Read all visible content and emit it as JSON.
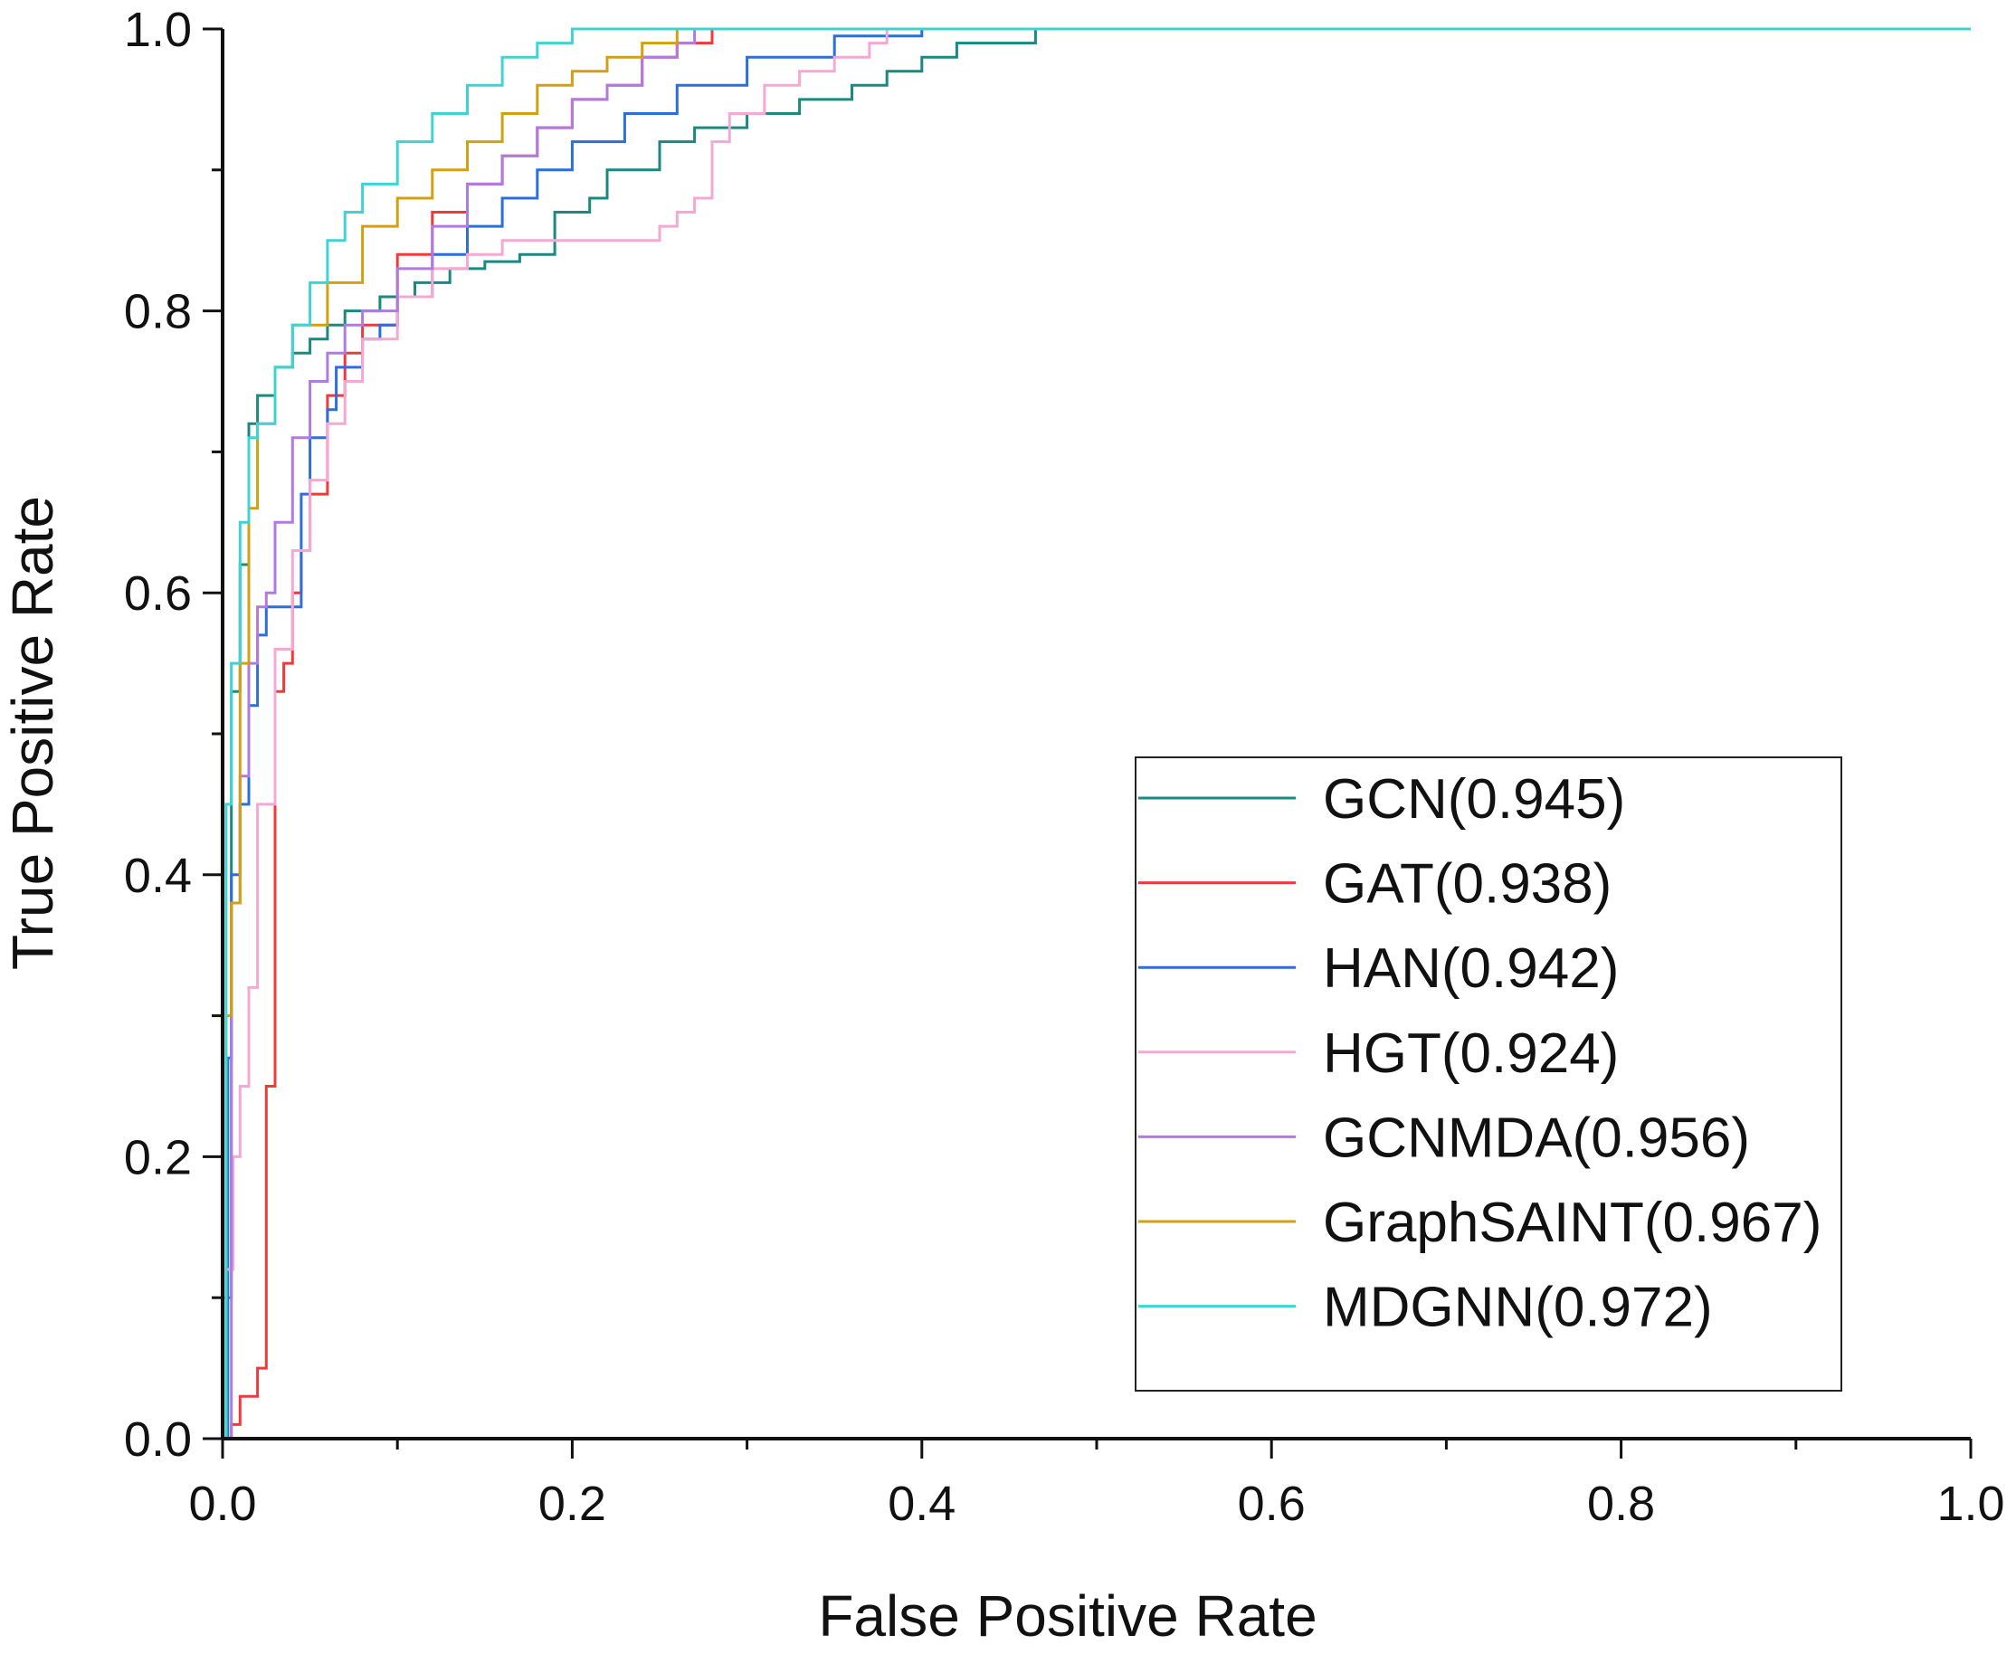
{
  "chart_data": {
    "type": "line",
    "title": "",
    "xlabel": "False Positive Rate",
    "ylabel": "True Positive Rate",
    "xlim": [
      0,
      1
    ],
    "ylim": [
      0,
      1
    ],
    "xticks": [
      "0.0",
      "0.2",
      "0.4",
      "0.6",
      "0.8",
      "1.0"
    ],
    "yticks": [
      "0.0",
      "0.2",
      "0.4",
      "0.6",
      "0.8",
      "1.0"
    ],
    "grid": false,
    "legend_position": "bottom-right",
    "series": [
      {
        "name": "GCN",
        "label": "GCN(0.945)",
        "auc": 0.945,
        "color": "#1a8a80",
        "x": [
          0,
          0,
          0.005,
          0.005,
          0.01,
          0.015,
          0.02,
          0.03,
          0.04,
          0.05,
          0.06,
          0.07,
          0.09,
          0.11,
          0.13,
          0.15,
          0.17,
          0.18,
          0.19,
          0.21,
          0.22,
          0.25,
          0.27,
          0.3,
          0.33,
          0.36,
          0.38,
          0.4,
          0.42,
          0.465,
          0.465,
          0.5,
          1.0
        ],
        "y": [
          0,
          0.1,
          0.2,
          0.53,
          0.62,
          0.72,
          0.74,
          0.76,
          0.77,
          0.78,
          0.79,
          0.8,
          0.81,
          0.82,
          0.83,
          0.835,
          0.84,
          0.84,
          0.87,
          0.88,
          0.9,
          0.92,
          0.93,
          0.94,
          0.95,
          0.96,
          0.97,
          0.98,
          0.99,
          0.99,
          1.0,
          1.0,
          1.0
        ]
      },
      {
        "name": "GAT",
        "label": "GAT(0.938)",
        "auc": 0.938,
        "color": "#f03a3a",
        "x": [
          0,
          0.005,
          0.01,
          0.02,
          0.025,
          0.025,
          0.03,
          0.03,
          0.035,
          0.04,
          0.045,
          0.05,
          0.06,
          0.07,
          0.08,
          0.1,
          0.12,
          0.14,
          0.16,
          0.18,
          0.2,
          0.22,
          0.24,
          0.26,
          0.28,
          0.32,
          1.0
        ],
        "y": [
          0,
          0.01,
          0.03,
          0.05,
          0.17,
          0.25,
          0.52,
          0.53,
          0.55,
          0.6,
          0.63,
          0.67,
          0.74,
          0.77,
          0.79,
          0.84,
          0.87,
          0.89,
          0.91,
          0.93,
          0.95,
          0.96,
          0.98,
          0.99,
          1.0,
          1.0,
          1.0
        ]
      },
      {
        "name": "HAN",
        "label": "HAN(0.942)",
        "auc": 0.942,
        "color": "#2c6fdc",
        "x": [
          0,
          0.003,
          0.005,
          0.01,
          0.015,
          0.02,
          0.025,
          0.03,
          0.045,
          0.05,
          0.06,
          0.065,
          0.08,
          0.09,
          0.1,
          0.12,
          0.14,
          0.16,
          0.18,
          0.2,
          0.23,
          0.26,
          0.3,
          0.35,
          0.4,
          1.0
        ],
        "y": [
          0,
          0.27,
          0.4,
          0.45,
          0.52,
          0.57,
          0.59,
          0.59,
          0.67,
          0.71,
          0.73,
          0.76,
          0.78,
          0.79,
          0.81,
          0.84,
          0.86,
          0.88,
          0.9,
          0.92,
          0.94,
          0.96,
          0.98,
          0.995,
          1.0,
          1.0
        ]
      },
      {
        "name": "HGT",
        "label": "HGT(0.924)",
        "auc": 0.924,
        "color": "#f5a8d4",
        "x": [
          0,
          0.002,
          0.006,
          0.01,
          0.015,
          0.02,
          0.03,
          0.04,
          0.05,
          0.06,
          0.07,
          0.08,
          0.1,
          0.12,
          0.14,
          0.16,
          0.18,
          0.2,
          0.22,
          0.24,
          0.25,
          0.26,
          0.27,
          0.28,
          0.29,
          0.31,
          0.33,
          0.35,
          0.37,
          0.38,
          1.0
        ],
        "y": [
          0,
          0.12,
          0.2,
          0.25,
          0.32,
          0.45,
          0.56,
          0.63,
          0.68,
          0.72,
          0.75,
          0.78,
          0.81,
          0.83,
          0.84,
          0.85,
          0.85,
          0.85,
          0.85,
          0.85,
          0.86,
          0.87,
          0.88,
          0.92,
          0.94,
          0.96,
          0.97,
          0.98,
          0.99,
          1.0,
          1.0
        ]
      },
      {
        "name": "GCNMDA",
        "label": "GCNMDA(0.956)",
        "auc": 0.956,
        "color": "#b07ae0",
        "x": [
          0,
          0.005,
          0.01,
          0.015,
          0.02,
          0.025,
          0.03,
          0.04,
          0.05,
          0.06,
          0.07,
          0.08,
          0.1,
          0.12,
          0.14,
          0.16,
          0.18,
          0.2,
          0.22,
          0.24,
          0.26,
          0.27,
          1.0
        ],
        "y": [
          0,
          0.38,
          0.47,
          0.55,
          0.59,
          0.6,
          0.65,
          0.71,
          0.75,
          0.77,
          0.79,
          0.8,
          0.83,
          0.86,
          0.89,
          0.91,
          0.93,
          0.95,
          0.96,
          0.98,
          0.99,
          1.0,
          1.0
        ]
      },
      {
        "name": "GraphSAINT",
        "label": "GraphSAINT(0.967)",
        "auc": 0.967,
        "color": "#d4a010",
        "x": [
          0,
          0.002,
          0.005,
          0.01,
          0.015,
          0.02,
          0.03,
          0.04,
          0.06,
          0.08,
          0.1,
          0.12,
          0.14,
          0.16,
          0.18,
          0.2,
          0.22,
          0.24,
          0.26,
          0.27,
          1.0
        ],
        "y": [
          0,
          0.3,
          0.38,
          0.55,
          0.66,
          0.72,
          0.76,
          0.79,
          0.82,
          0.86,
          0.88,
          0.9,
          0.92,
          0.94,
          0.96,
          0.97,
          0.98,
          0.99,
          1.0,
          1.0,
          1.0
        ]
      },
      {
        "name": "MDGNN",
        "label": "MDGNN(0.972)",
        "auc": 0.972,
        "color": "#3fd4d4",
        "x": [
          0,
          0.002,
          0.005,
          0.01,
          0.015,
          0.02,
          0.03,
          0.04,
          0.05,
          0.06,
          0.07,
          0.08,
          0.1,
          0.12,
          0.14,
          0.16,
          0.18,
          0.2,
          0.22,
          1.0
        ],
        "y": [
          0,
          0.45,
          0.55,
          0.65,
          0.71,
          0.72,
          0.76,
          0.79,
          0.82,
          0.85,
          0.87,
          0.89,
          0.92,
          0.94,
          0.96,
          0.98,
          0.99,
          1.0,
          1.0,
          1.0
        ]
      }
    ]
  }
}
